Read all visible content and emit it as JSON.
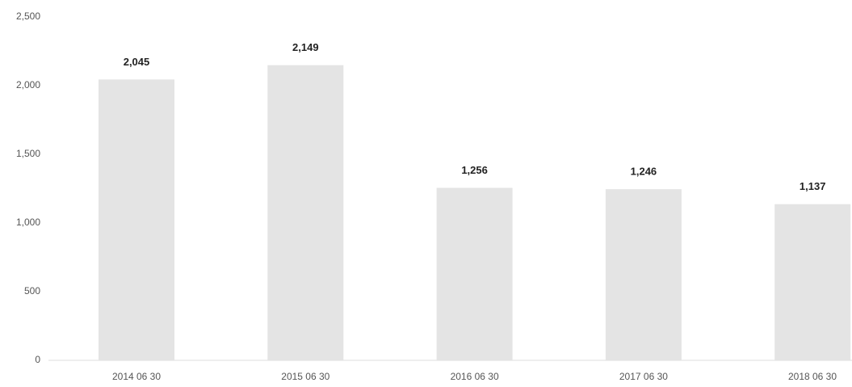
{
  "chart_data": {
    "type": "bar",
    "categories": [
      "2014 06 30",
      "2015 06 30",
      "2016 06 30",
      "2017 06 30",
      "2018 06 30"
    ],
    "values": [
      2045,
      2149,
      1256,
      1246,
      1137
    ],
    "value_labels": [
      "2,045",
      "2,149",
      "1,256",
      "1,246",
      "1,137"
    ],
    "color": "#e4e4e4",
    "ylim": [
      0,
      2500
    ],
    "yticks": [
      0,
      500,
      {
        "value": 1000,
        "label": "1,000"
      },
      {
        "value": 1500,
        "label": "1,500"
      },
      {
        "value": 2000,
        "label": "2,000"
      },
      {
        "value": 2500,
        "label": "2,500"
      }
    ],
    "grid": false
  }
}
